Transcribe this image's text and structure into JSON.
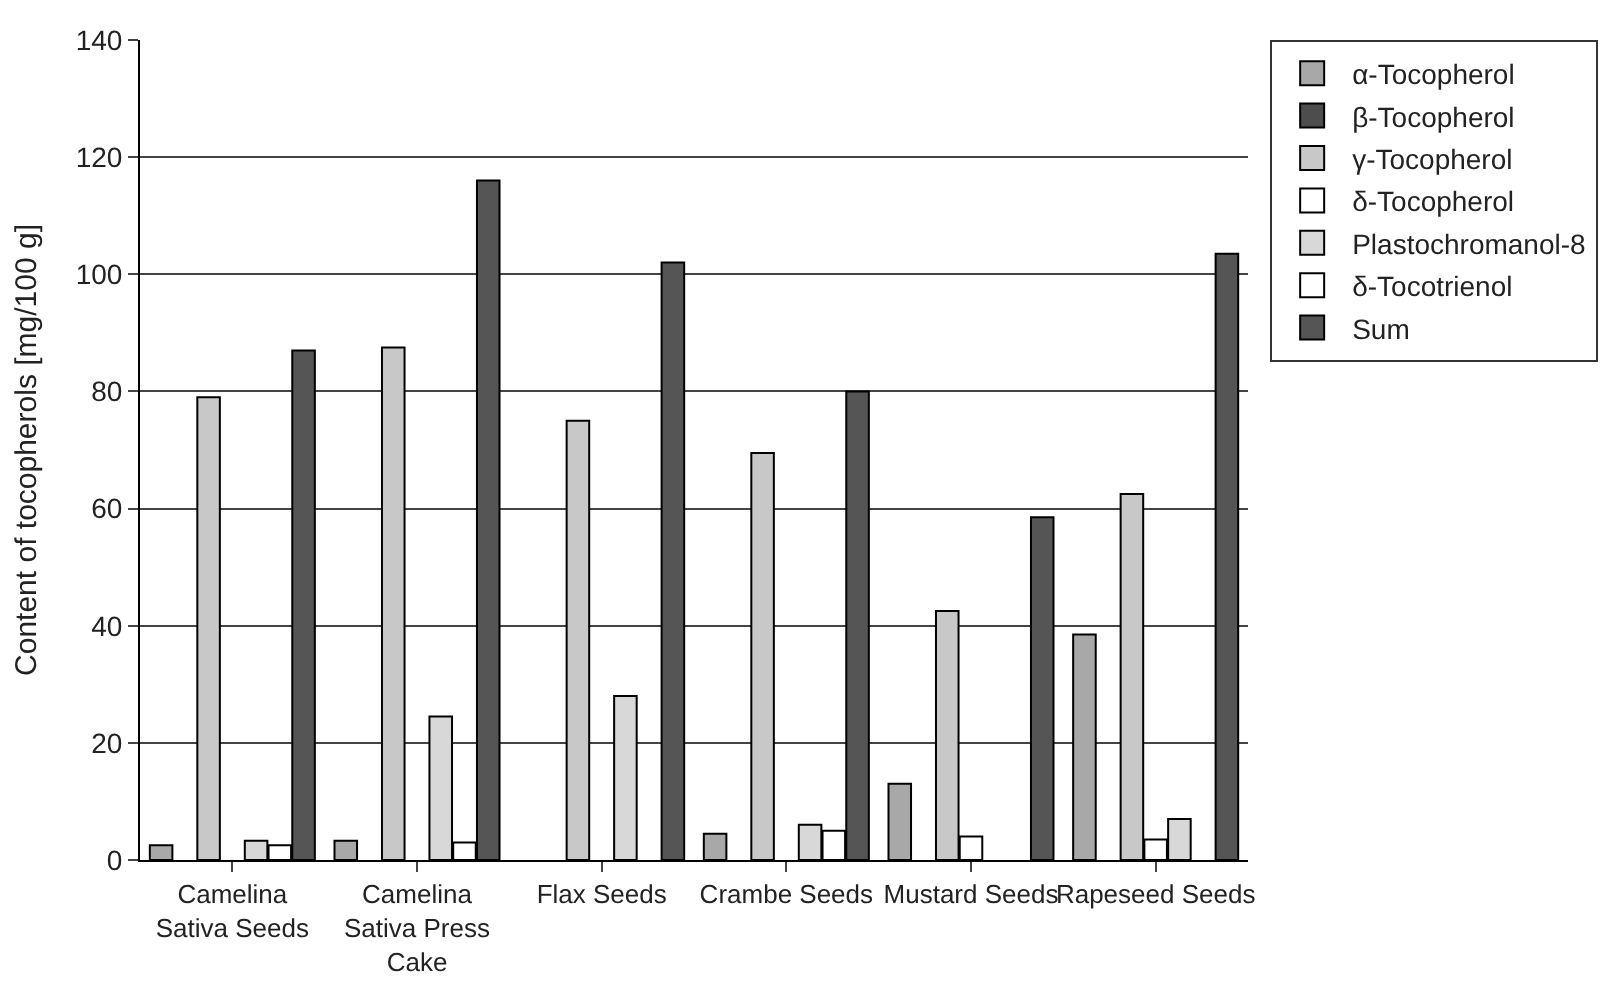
{
  "chart_data": {
    "type": "bar",
    "ylabel": "Content of tocopherols [mg/100 g]",
    "categories": [
      "Camelina Sativa Seeds",
      "Camelina Sativa Press Cake",
      "Flax Seeds",
      "Crambe Seeds",
      "Mustard Seeds",
      "Rapeseed Seeds"
    ],
    "series": [
      {
        "name": "α-Tocopherol",
        "color": "#a8a8a8",
        "values": [
          2.5,
          3.3,
          null,
          4.5,
          13,
          38.5
        ]
      },
      {
        "name": "β-Tocopherol",
        "color": "#4d4d4d",
        "values": [
          null,
          null,
          null,
          null,
          null,
          null
        ]
      },
      {
        "name": "γ-Tocopherol",
        "color": "#c8c8c8",
        "values": [
          79,
          87.5,
          75,
          69.5,
          42.5,
          62.5
        ]
      },
      {
        "name": "δ-Tocopherol",
        "color": "#ffffff",
        "values": [
          null,
          null,
          null,
          null,
          4,
          3.5
        ]
      },
      {
        "name": "Plastochromanol-8",
        "color": "#d8d8d8",
        "values": [
          3.3,
          24.5,
          28,
          6,
          null,
          7
        ]
      },
      {
        "name": "δ-Tocotrienol",
        "color": "#ffffff",
        "values": [
          2.5,
          3,
          null,
          5,
          null,
          null
        ]
      },
      {
        "name": "Sum",
        "color": "#555555",
        "values": [
          87,
          116,
          102,
          80,
          58.5,
          103.5
        ]
      }
    ],
    "ylim": [
      0,
      140
    ],
    "yticks": [
      0,
      20,
      40,
      60,
      80,
      100,
      120,
      140
    ],
    "grid": "y",
    "legend": "right"
  }
}
